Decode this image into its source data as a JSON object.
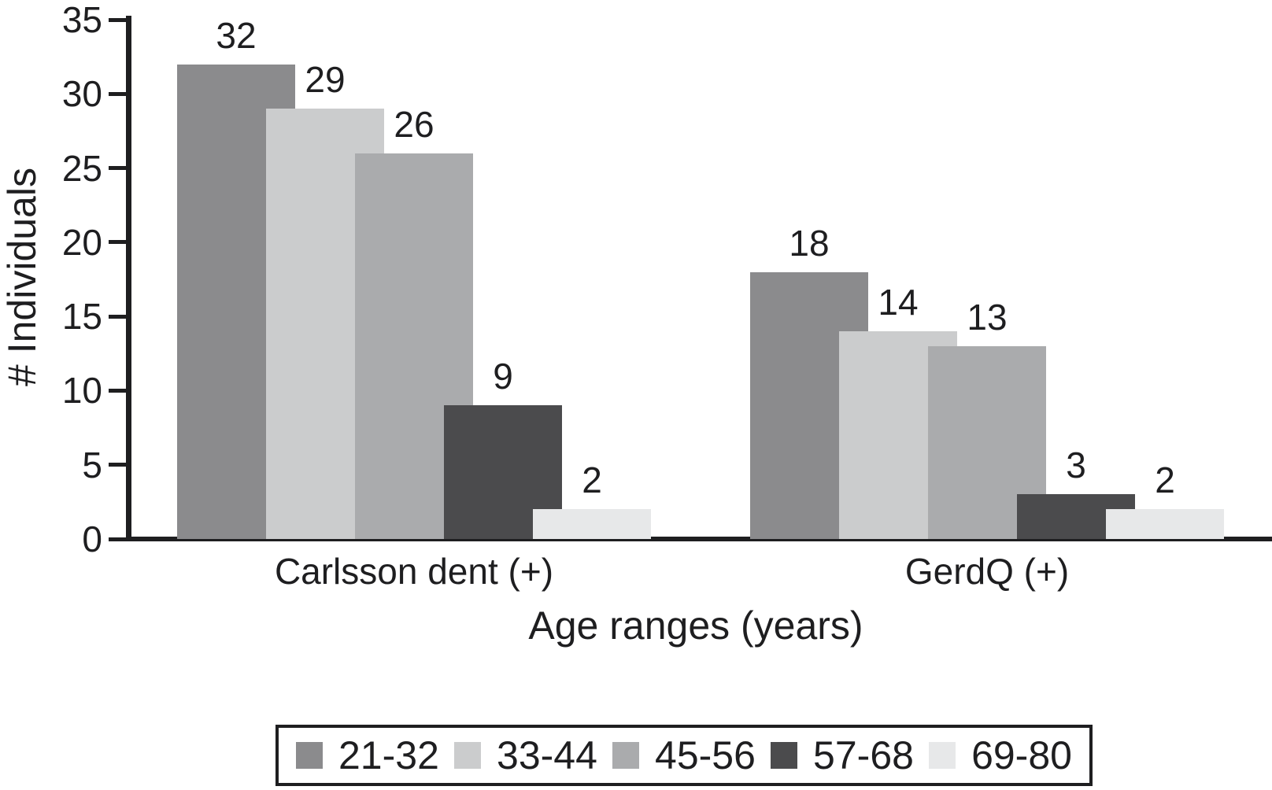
{
  "chart_data": {
    "type": "bar",
    "title": "",
    "xlabel": "Age ranges (years)",
    "ylabel": "# Individuals",
    "ylim": [
      0,
      35
    ],
    "yticks": [
      0,
      5,
      10,
      15,
      20,
      25,
      30,
      35
    ],
    "grid": false,
    "legend_position": "bottom",
    "bar_style": "overlapping grayscale, later series drawn on top",
    "categories": [
      "Carlsson dent (+)",
      "GerdQ (+)"
    ],
    "series": [
      {
        "name": "21-32",
        "color": "#8b8b8d",
        "values": [
          32,
          18
        ]
      },
      {
        "name": "33-44",
        "color": "#cbcccd",
        "values": [
          29,
          14
        ]
      },
      {
        "name": "45-56",
        "color": "#aaabad",
        "values": [
          26,
          13
        ]
      },
      {
        "name": "57-68",
        "color": "#4b4b4d",
        "values": [
          9,
          3
        ]
      },
      {
        "name": "69-80",
        "color": "#e7e8e9",
        "values": [
          2,
          2
        ]
      }
    ],
    "value_labels": [
      [
        32,
        29,
        26,
        9,
        2
      ],
      [
        18,
        14,
        13,
        3,
        2
      ]
    ]
  },
  "colors": {
    "ink": "#1e1e20",
    "background": "#ffffff"
  }
}
